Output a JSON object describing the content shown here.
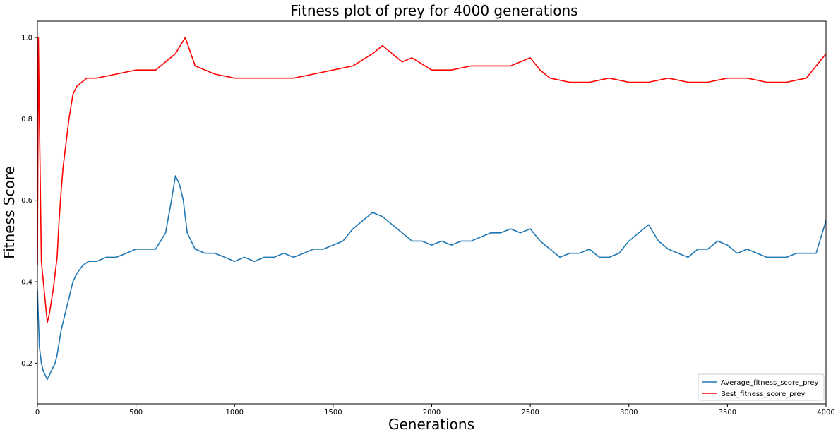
{
  "chart_data": {
    "type": "line",
    "title": "Fitness plot of prey for 4000 generations",
    "xlabel": "Generations",
    "ylabel": "Fitness Score",
    "xlim": [
      0,
      4000
    ],
    "ylim": [
      0.1,
      1.04
    ],
    "xticks": [
      0,
      500,
      1000,
      1500,
      2000,
      2500,
      3000,
      3500,
      4000
    ],
    "yticks": [
      0.2,
      0.4,
      0.6,
      0.8,
      1.0
    ],
    "ytick_labels": [
      "0.2",
      "0.4",
      "0.6",
      "0.8",
      "1.0"
    ],
    "grid": false,
    "legend_position": "lower-right",
    "series": [
      {
        "name": "Average_fitness_score_prey",
        "color": "#1f77b4",
        "x": [
          0,
          10,
          20,
          30,
          40,
          50,
          60,
          70,
          80,
          90,
          100,
          110,
          120,
          130,
          140,
          150,
          160,
          170,
          180,
          200,
          230,
          260,
          300,
          350,
          400,
          450,
          500,
          550,
          600,
          650,
          680,
          700,
          720,
          740,
          760,
          800,
          850,
          900,
          950,
          1000,
          1050,
          1100,
          1150,
          1200,
          1250,
          1300,
          1350,
          1400,
          1450,
          1500,
          1550,
          1600,
          1650,
          1700,
          1750,
          1800,
          1850,
          1900,
          1950,
          2000,
          2050,
          2100,
          2150,
          2200,
          2250,
          2300,
          2350,
          2400,
          2450,
          2500,
          2550,
          2600,
          2650,
          2700,
          2750,
          2800,
          2850,
          2900,
          2950,
          3000,
          3050,
          3100,
          3150,
          3200,
          3250,
          3300,
          3350,
          3400,
          3450,
          3500,
          3550,
          3600,
          3650,
          3700,
          3750,
          3800,
          3850,
          3900,
          3950,
          4000
        ],
        "y": [
          0.38,
          0.24,
          0.2,
          0.18,
          0.17,
          0.16,
          0.17,
          0.18,
          0.19,
          0.2,
          0.22,
          0.25,
          0.28,
          0.3,
          0.32,
          0.34,
          0.36,
          0.38,
          0.4,
          0.42,
          0.44,
          0.45,
          0.45,
          0.46,
          0.46,
          0.47,
          0.48,
          0.48,
          0.48,
          0.52,
          0.6,
          0.66,
          0.64,
          0.6,
          0.52,
          0.48,
          0.47,
          0.47,
          0.46,
          0.45,
          0.46,
          0.45,
          0.46,
          0.46,
          0.47,
          0.46,
          0.47,
          0.48,
          0.48,
          0.49,
          0.5,
          0.53,
          0.55,
          0.57,
          0.56,
          0.54,
          0.52,
          0.5,
          0.5,
          0.49,
          0.5,
          0.49,
          0.5,
          0.5,
          0.51,
          0.52,
          0.52,
          0.53,
          0.52,
          0.53,
          0.5,
          0.48,
          0.46,
          0.47,
          0.47,
          0.48,
          0.46,
          0.46,
          0.47,
          0.5,
          0.52,
          0.54,
          0.5,
          0.48,
          0.47,
          0.46,
          0.48,
          0.48,
          0.5,
          0.49,
          0.47,
          0.48,
          0.47,
          0.46,
          0.46,
          0.46,
          0.47,
          0.47,
          0.47,
          0.55
        ]
      },
      {
        "name": "Best_fitness_score_prey",
        "color": "#ff0000",
        "x": [
          0,
          5,
          10,
          20,
          30,
          40,
          50,
          60,
          70,
          80,
          90,
          100,
          110,
          120,
          130,
          140,
          150,
          160,
          170,
          180,
          200,
          250,
          300,
          400,
          500,
          600,
          700,
          750,
          800,
          900,
          1000,
          1100,
          1200,
          1300,
          1400,
          1500,
          1600,
          1700,
          1750,
          1800,
          1850,
          1900,
          2000,
          2100,
          2200,
          2300,
          2400,
          2500,
          2550,
          2600,
          2700,
          2800,
          2900,
          3000,
          3100,
          3200,
          3300,
          3400,
          3500,
          3600,
          3700,
          3800,
          3900,
          4000
        ],
        "y": [
          0.44,
          1.0,
          0.8,
          0.45,
          0.4,
          0.35,
          0.3,
          0.32,
          0.35,
          0.38,
          0.42,
          0.46,
          0.55,
          0.62,
          0.68,
          0.72,
          0.76,
          0.8,
          0.83,
          0.86,
          0.88,
          0.9,
          0.9,
          0.91,
          0.92,
          0.92,
          0.96,
          1.0,
          0.93,
          0.91,
          0.9,
          0.9,
          0.9,
          0.9,
          0.91,
          0.92,
          0.93,
          0.96,
          0.98,
          0.96,
          0.94,
          0.95,
          0.92,
          0.92,
          0.93,
          0.93,
          0.93,
          0.95,
          0.92,
          0.9,
          0.89,
          0.89,
          0.9,
          0.89,
          0.89,
          0.9,
          0.89,
          0.89,
          0.9,
          0.9,
          0.89,
          0.89,
          0.9,
          0.96
        ]
      }
    ]
  }
}
